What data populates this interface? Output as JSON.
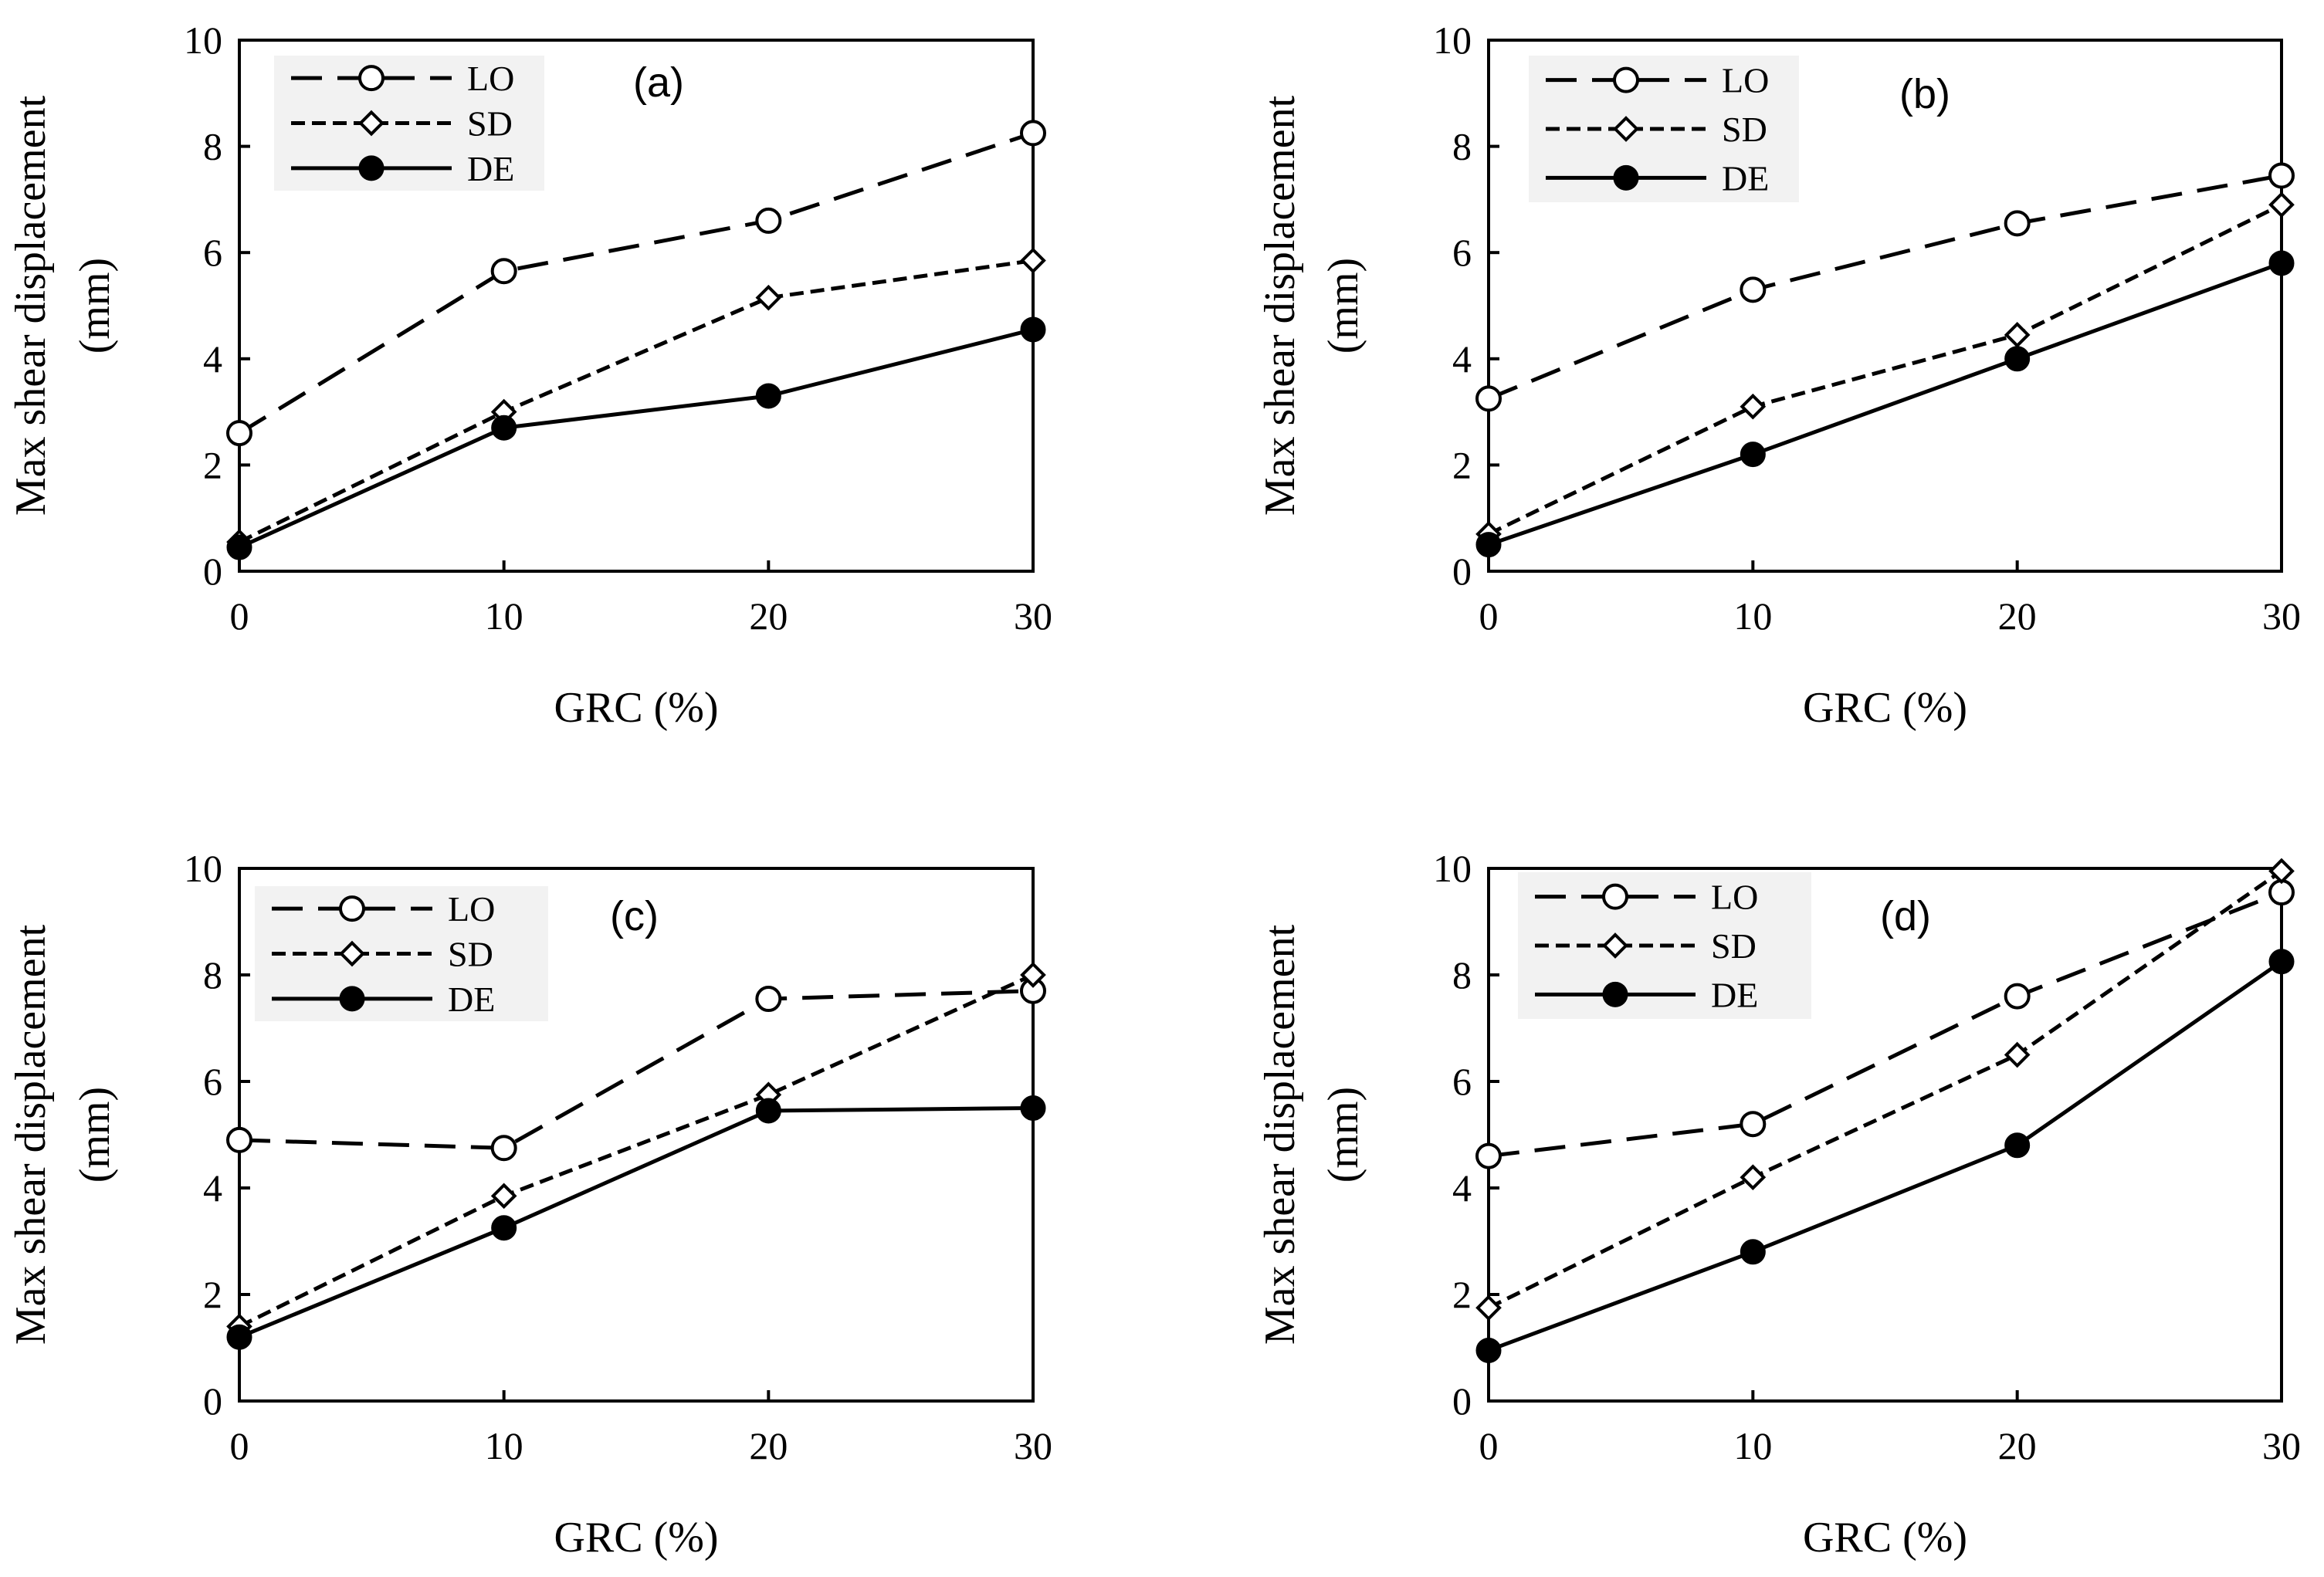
{
  "chart_data": [
    {
      "type": "line",
      "panel": "(a)",
      "xlabel": "GRC (%)",
      "ylabel": "Max shear displacement (mm)",
      "ylabel_lines": [
        "Max shear displacement",
        "(mm)"
      ],
      "x": [
        0,
        10,
        20,
        30
      ],
      "xlim": [
        0,
        30
      ],
      "ylim": [
        0,
        10
      ],
      "xticks": [
        "0",
        "10",
        "20",
        "30"
      ],
      "yticks": [
        "0",
        "2",
        "4",
        "6",
        "8",
        "10"
      ],
      "legend": "top-left",
      "series": [
        {
          "name": "LO",
          "style": "long-dash",
          "marker": "open-circle",
          "values": [
            2.6,
            5.65,
            6.6,
            8.25
          ]
        },
        {
          "name": "SD",
          "style": "short-dash",
          "marker": "open-diamond",
          "values": [
            0.55,
            3.0,
            5.15,
            5.85
          ]
        },
        {
          "name": "DE",
          "style": "solid",
          "marker": "filled-circle",
          "values": [
            0.45,
            2.7,
            3.3,
            4.55
          ]
        }
      ]
    },
    {
      "type": "line",
      "panel": "(b)",
      "xlabel": "GRC (%)",
      "ylabel": "Max shear displacement (mm)",
      "ylabel_lines": [
        "Max shear displacement",
        "(mm)"
      ],
      "x": [
        0,
        10,
        20,
        30
      ],
      "xlim": [
        0,
        30
      ],
      "ylim": [
        0,
        10
      ],
      "xticks": [
        "0",
        "10",
        "20",
        "30"
      ],
      "yticks": [
        "0",
        "2",
        "4",
        "6",
        "8",
        "10"
      ],
      "legend": "top-left",
      "series": [
        {
          "name": "LO",
          "style": "long-dash",
          "marker": "open-circle",
          "values": [
            3.25,
            5.3,
            6.55,
            7.45
          ]
        },
        {
          "name": "SD",
          "style": "short-dash",
          "marker": "open-diamond",
          "values": [
            0.7,
            3.1,
            4.45,
            6.9
          ]
        },
        {
          "name": "DE",
          "style": "solid",
          "marker": "filled-circle",
          "values": [
            0.5,
            2.2,
            4.0,
            5.8
          ]
        }
      ]
    },
    {
      "type": "line",
      "panel": "(c)",
      "xlabel": "GRC (%)",
      "ylabel": "Max shear displacement (mm)",
      "ylabel_lines": [
        "Max shear displacement",
        "(mm)"
      ],
      "x": [
        0,
        10,
        20,
        30
      ],
      "xlim": [
        0,
        30
      ],
      "ylim": [
        0,
        10
      ],
      "xticks": [
        "0",
        "10",
        "20",
        "30"
      ],
      "yticks": [
        "0",
        "2",
        "4",
        "6",
        "8",
        "10"
      ],
      "legend": "top-left",
      "series": [
        {
          "name": "LO",
          "style": "long-dash",
          "marker": "open-circle",
          "values": [
            4.9,
            4.75,
            7.55,
            7.7
          ]
        },
        {
          "name": "SD",
          "style": "short-dash",
          "marker": "open-diamond",
          "values": [
            1.4,
            3.85,
            5.75,
            8.0
          ]
        },
        {
          "name": "DE",
          "style": "solid",
          "marker": "filled-circle",
          "values": [
            1.2,
            3.25,
            5.45,
            5.5
          ]
        }
      ]
    },
    {
      "type": "line",
      "panel": "(d)",
      "xlabel": "GRC (%)",
      "ylabel": "Max shear displacement (mm)",
      "ylabel_lines": [
        "Max shear displacement",
        "(mm)"
      ],
      "x": [
        0,
        10,
        20,
        30
      ],
      "xlim": [
        0,
        30
      ],
      "ylim": [
        0,
        10
      ],
      "xticks": [
        "0",
        "10",
        "20",
        "30"
      ],
      "yticks": [
        "0",
        "2",
        "4",
        "6",
        "8",
        "10"
      ],
      "legend": "top-left",
      "series": [
        {
          "name": "LO",
          "style": "long-dash",
          "marker": "open-circle",
          "values": [
            4.6,
            5.2,
            7.6,
            9.55
          ]
        },
        {
          "name": "SD",
          "style": "short-dash",
          "marker": "open-diamond",
          "values": [
            1.75,
            4.2,
            6.5,
            9.95
          ]
        },
        {
          "name": "DE",
          "style": "solid",
          "marker": "filled-circle",
          "values": [
            0.95,
            2.8,
            4.8,
            8.25
          ]
        }
      ]
    }
  ]
}
